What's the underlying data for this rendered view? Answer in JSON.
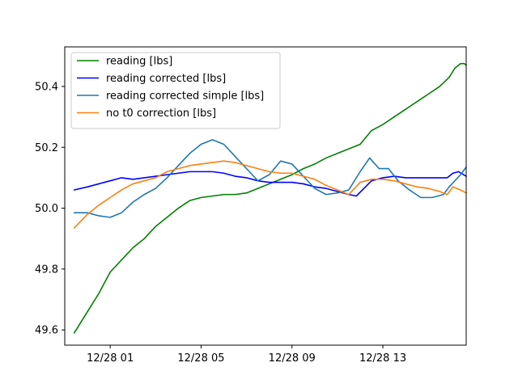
{
  "chart_data": {
    "type": "line",
    "x_axis": {
      "kind": "datetime",
      "range": [
        "12/27 23:00",
        "12/28 16:40"
      ],
      "ticks": [
        {
          "value": "12/28 01:00",
          "label": "12/28 01"
        },
        {
          "value": "12/28 05:00",
          "label": "12/28 05"
        },
        {
          "value": "12/28 09:00",
          "label": "12/28 09"
        },
        {
          "value": "12/28 13:00",
          "label": "12/28 13"
        }
      ]
    },
    "y_axis": {
      "range": [
        49.55,
        50.53
      ],
      "ticks": [
        {
          "value": 49.6,
          "label": "49.6"
        },
        {
          "value": 49.8,
          "label": "49.8"
        },
        {
          "value": 50.0,
          "label": "50.0"
        },
        {
          "value": 50.2,
          "label": "50.2"
        },
        {
          "value": 50.4,
          "label": "50.4"
        }
      ]
    },
    "grid": false,
    "legend": {
      "placement": "top-left"
    },
    "series": [
      {
        "name": "reading [lbs]",
        "color": "#008000",
        "points": [
          [
            "12/27 23:25",
            49.59
          ],
          [
            "12/28 00:00",
            49.66
          ],
          [
            "12/28 00:30",
            49.72
          ],
          [
            "12/28 01:00",
            49.79
          ],
          [
            "12/28 01:30",
            49.83
          ],
          [
            "12/28 02:00",
            49.87
          ],
          [
            "12/28 02:30",
            49.9
          ],
          [
            "12/28 03:00",
            49.94
          ],
          [
            "12/28 03:30",
            49.97
          ],
          [
            "12/28 04:00",
            50.0
          ],
          [
            "12/28 04:30",
            50.025
          ],
          [
            "12/28 05:00",
            50.035
          ],
          [
            "12/28 05:30",
            50.04
          ],
          [
            "12/28 06:00",
            50.045
          ],
          [
            "12/28 06:30",
            50.045
          ],
          [
            "12/28 07:00",
            50.05
          ],
          [
            "12/28 07:30",
            50.065
          ],
          [
            "12/28 08:00",
            50.08
          ],
          [
            "12/28 08:30",
            50.095
          ],
          [
            "12/28 09:00",
            50.11
          ],
          [
            "12/28 09:30",
            50.13
          ],
          [
            "12/28 10:00",
            50.145
          ],
          [
            "12/28 10:30",
            50.165
          ],
          [
            "12/28 11:00",
            50.18
          ],
          [
            "12/28 11:30",
            50.195
          ],
          [
            "12/28 12:00",
            50.21
          ],
          [
            "12/28 12:30",
            50.255
          ],
          [
            "12/28 13:00",
            50.275
          ],
          [
            "12/28 13:30",
            50.3
          ],
          [
            "12/28 14:00",
            50.325
          ],
          [
            "12/28 14:30",
            50.35
          ],
          [
            "12/28 15:00",
            50.375
          ],
          [
            "12/28 15:30",
            50.4
          ],
          [
            "12/28 15:55",
            50.43
          ],
          [
            "12/28 16:10",
            50.46
          ],
          [
            "12/28 16:25",
            50.475
          ],
          [
            "12/28 16:35",
            50.475
          ],
          [
            "12/28 16:40",
            50.47
          ]
        ]
      },
      {
        "name": "reading corrected [lbs]",
        "color": "#0000ff",
        "points": [
          [
            "12/27 23:25",
            50.06
          ],
          [
            "12/28 00:00",
            50.07
          ],
          [
            "12/28 00:30",
            50.08
          ],
          [
            "12/28 01:00",
            50.09
          ],
          [
            "12/28 01:30",
            50.1
          ],
          [
            "12/28 02:00",
            50.095
          ],
          [
            "12/28 02:30",
            50.1
          ],
          [
            "12/28 03:00",
            50.105
          ],
          [
            "12/28 03:30",
            50.11
          ],
          [
            "12/28 04:00",
            50.115
          ],
          [
            "12/28 04:30",
            50.12
          ],
          [
            "12/28 05:00",
            50.12
          ],
          [
            "12/28 05:30",
            50.12
          ],
          [
            "12/28 06:00",
            50.115
          ],
          [
            "12/28 06:30",
            50.105
          ],
          [
            "12/28 07:00",
            50.1
          ],
          [
            "12/28 07:30",
            50.09
          ],
          [
            "12/28 08:00",
            50.085
          ],
          [
            "12/28 08:30",
            50.085
          ],
          [
            "12/28 09:00",
            50.085
          ],
          [
            "12/28 09:30",
            50.08
          ],
          [
            "12/28 10:00",
            50.07
          ],
          [
            "12/28 10:30",
            50.065
          ],
          [
            "12/28 11:00",
            50.055
          ],
          [
            "12/28 11:30",
            50.045
          ],
          [
            "12/28 11:50",
            50.04
          ],
          [
            "12/28 12:10",
            50.065
          ],
          [
            "12/28 12:30",
            50.09
          ],
          [
            "12/28 13:00",
            50.1
          ],
          [
            "12/28 13:30",
            50.105
          ],
          [
            "12/28 14:00",
            50.1
          ],
          [
            "12/28 14:30",
            50.1
          ],
          [
            "12/28 15:00",
            50.1
          ],
          [
            "12/28 15:30",
            50.1
          ],
          [
            "12/28 15:50",
            50.1
          ],
          [
            "12/28 16:05",
            50.115
          ],
          [
            "12/28 16:20",
            50.12
          ],
          [
            "12/28 16:40",
            50.105
          ]
        ]
      },
      {
        "name": "reading corrected simple [lbs]",
        "color": "#1f77b4",
        "points": [
          [
            "12/27 23:25",
            49.985
          ],
          [
            "12/28 00:00",
            49.985
          ],
          [
            "12/28 00:30",
            49.975
          ],
          [
            "12/28 01:00",
            49.97
          ],
          [
            "12/28 01:30",
            49.985
          ],
          [
            "12/28 02:00",
            50.02
          ],
          [
            "12/28 02:30",
            50.045
          ],
          [
            "12/28 03:00",
            50.065
          ],
          [
            "12/28 03:30",
            50.1
          ],
          [
            "12/28 04:00",
            50.14
          ],
          [
            "12/28 04:30",
            50.18
          ],
          [
            "12/28 05:00",
            50.21
          ],
          [
            "12/28 05:30",
            50.225
          ],
          [
            "12/28 06:00",
            50.21
          ],
          [
            "12/28 06:30",
            50.17
          ],
          [
            "12/28 07:00",
            50.13
          ],
          [
            "12/28 07:30",
            50.09
          ],
          [
            "12/28 08:00",
            50.11
          ],
          [
            "12/28 08:30",
            50.155
          ],
          [
            "12/28 09:00",
            50.145
          ],
          [
            "12/28 09:30",
            50.105
          ],
          [
            "12/28 10:00",
            50.065
          ],
          [
            "12/28 10:30",
            50.045
          ],
          [
            "12/28 11:00",
            50.05
          ],
          [
            "12/28 11:30",
            50.06
          ],
          [
            "12/28 12:00",
            50.12
          ],
          [
            "12/28 12:25",
            50.165
          ],
          [
            "12/28 12:50",
            50.13
          ],
          [
            "12/28 13:15",
            50.13
          ],
          [
            "12/28 13:40",
            50.09
          ],
          [
            "12/28 14:10",
            50.06
          ],
          [
            "12/28 14:40",
            50.035
          ],
          [
            "12/28 15:10",
            50.035
          ],
          [
            "12/28 15:40",
            50.045
          ],
          [
            "12/28 15:55",
            50.07
          ],
          [
            "12/28 16:10",
            50.09
          ],
          [
            "12/28 16:25",
            50.11
          ],
          [
            "12/28 16:40",
            50.135
          ]
        ]
      },
      {
        "name": "no t0 correction [lbs]",
        "color": "#ff7f0e",
        "points": [
          [
            "12/27 23:25",
            49.935
          ],
          [
            "12/28 00:00",
            49.98
          ],
          [
            "12/28 00:30",
            50.01
          ],
          [
            "12/28 01:00",
            50.035
          ],
          [
            "12/28 01:30",
            50.06
          ],
          [
            "12/28 02:00",
            50.08
          ],
          [
            "12/28 02:30",
            50.09
          ],
          [
            "12/28 03:00",
            50.1
          ],
          [
            "12/28 03:30",
            50.12
          ],
          [
            "12/28 04:00",
            50.13
          ],
          [
            "12/28 04:30",
            50.14
          ],
          [
            "12/28 05:00",
            50.145
          ],
          [
            "12/28 05:30",
            50.15
          ],
          [
            "12/28 06:00",
            50.155
          ],
          [
            "12/28 06:30",
            50.15
          ],
          [
            "12/28 07:00",
            50.14
          ],
          [
            "12/28 07:30",
            50.13
          ],
          [
            "12/28 08:00",
            50.12
          ],
          [
            "12/28 08:30",
            50.115
          ],
          [
            "12/28 09:00",
            50.115
          ],
          [
            "12/28 09:30",
            50.105
          ],
          [
            "12/28 10:00",
            50.095
          ],
          [
            "12/28 10:30",
            50.075
          ],
          [
            "12/28 11:00",
            50.06
          ],
          [
            "12/28 11:30",
            50.045
          ],
          [
            "12/28 12:00",
            50.085
          ],
          [
            "12/28 12:30",
            50.095
          ],
          [
            "12/28 13:00",
            50.095
          ],
          [
            "12/28 13:30",
            50.09
          ],
          [
            "12/28 14:00",
            50.08
          ],
          [
            "12/28 14:30",
            50.07
          ],
          [
            "12/28 15:00",
            50.065
          ],
          [
            "12/28 15:30",
            50.055
          ],
          [
            "12/28 15:50",
            50.045
          ],
          [
            "12/28 16:05",
            50.07
          ],
          [
            "12/28 16:25",
            50.06
          ],
          [
            "12/28 16:40",
            50.05
          ]
        ]
      }
    ]
  }
}
